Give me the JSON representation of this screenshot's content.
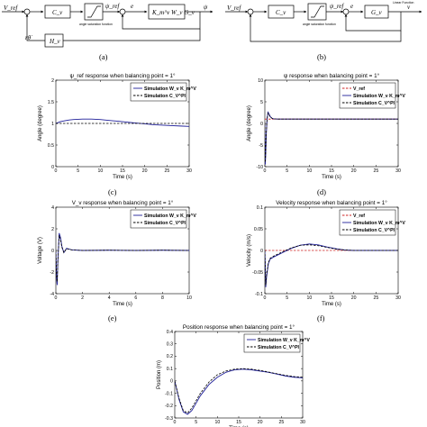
{
  "diagrams": {
    "a": {
      "caption": "(a)",
      "input": "V_ref",
      "controller": "C_v",
      "sat_label": "angle saturation function",
      "psi_ref": "ψ_ref",
      "e": "e",
      "plant": "K_m^v W_v G_v",
      "output": "ψ",
      "feedback_block": "H_v",
      "feedback_signal": "rθ̇"
    },
    "b": {
      "caption": "(b)",
      "input": "V_ref",
      "controller": "C_v",
      "sat_label": "angle saturation function",
      "psi_ref": "ψ_ref",
      "e": "e",
      "plant": "G_v",
      "corner": "Linear Function",
      "output": "v"
    }
  },
  "chart_data": [
    {
      "id": "c",
      "caption": "(c)",
      "type": "line",
      "title": "ψ_ref response when balancing point = 1°",
      "xlabel": "Time (s)",
      "ylabel": "Angle (degree)",
      "xlim": [
        0,
        30
      ],
      "ylim": [
        0,
        2
      ],
      "xticks": [
        "0",
        "5",
        "10",
        "15",
        "20",
        "25",
        "30"
      ],
      "yticks": [
        "0",
        "0.5",
        "1",
        "1.5",
        "2"
      ],
      "legend_position": "top-right",
      "series": [
        {
          "name": "Simulation W_v K_m^V",
          "color": "#1f1f99",
          "dash": "solid",
          "x": [
            0,
            0.5,
            1,
            2,
            3,
            4,
            6,
            8,
            10,
            12,
            14,
            16,
            18,
            20,
            22,
            24,
            26,
            28,
            30
          ],
          "y": [
            1.0,
            1.02,
            1.04,
            1.06,
            1.08,
            1.09,
            1.1,
            1.1,
            1.09,
            1.07,
            1.05,
            1.03,
            1.01,
            0.99,
            0.97,
            0.96,
            0.95,
            0.94,
            0.93
          ]
        },
        {
          "name": "Simulation C_V^PI",
          "color": "#000000",
          "dash": "dashed",
          "x": [
            0,
            30
          ],
          "y": [
            1.0,
            1.0
          ]
        }
      ]
    },
    {
      "id": "d",
      "caption": "(d)",
      "type": "line",
      "title": "ψ response when balancing point = 1°",
      "xlabel": "Time (s)",
      "ylabel": "Angle (degree)",
      "xlim": [
        0,
        30
      ],
      "ylim": [
        -10,
        10
      ],
      "xticks": [
        "0",
        "5",
        "10",
        "15",
        "20",
        "25",
        "30"
      ],
      "yticks": [
        "-10",
        "-5",
        "0",
        "5",
        "10"
      ],
      "legend_position": "top-right",
      "series": [
        {
          "name": "V_ref",
          "color": "#cc2222",
          "dash": "dashed",
          "x": [
            0,
            30
          ],
          "y": [
            1,
            1
          ]
        },
        {
          "name": "Simulation W_v K_m^V",
          "color": "#1f1f99",
          "dash": "solid",
          "x": [
            0,
            0.1,
            0.2,
            0.3,
            0.5,
            0.7,
            0.9,
            1.2,
            1.6,
            2,
            3,
            5,
            10,
            20,
            30
          ],
          "y": [
            0,
            -9.5,
            -7,
            -3,
            1,
            2.6,
            2.3,
            1.6,
            1.2,
            1.05,
            1.0,
            1.0,
            1.0,
            1.0,
            1.0
          ]
        },
        {
          "name": "Simulation C_V^PI",
          "color": "#000000",
          "dash": "dashed",
          "x": [
            0,
            0.1,
            0.2,
            0.3,
            0.5,
            0.7,
            0.9,
            1.2,
            1.6,
            2,
            3,
            5,
            10,
            20,
            30
          ],
          "y": [
            0,
            -9,
            -6.5,
            -2.5,
            1,
            2.4,
            2.1,
            1.5,
            1.2,
            1.05,
            1.0,
            1.0,
            1.0,
            1.0,
            1.0
          ]
        }
      ]
    },
    {
      "id": "e",
      "caption": "(e)",
      "type": "line",
      "title": "V_v response when balancing point = 1°",
      "xlabel": "Time (s)",
      "ylabel": "Voltage (V)",
      "xlim": [
        0,
        10
      ],
      "ylim": [
        -4,
        4
      ],
      "xticks": [
        "0",
        "2",
        "4",
        "6",
        "8",
        "10"
      ],
      "yticks": [
        "-4",
        "-2",
        "0",
        "2",
        "4"
      ],
      "legend_position": "top-right",
      "series": [
        {
          "name": "Simulation W_v K_m^V",
          "color": "#1f1f99",
          "dash": "solid",
          "x": [
            0,
            0.05,
            0.1,
            0.15,
            0.25,
            0.35,
            0.45,
            0.6,
            0.8,
            1.2,
            2,
            4,
            6,
            8,
            10
          ],
          "y": [
            0,
            -2.5,
            -3.2,
            -1,
            1.6,
            1.2,
            0.4,
            -0.2,
            0.2,
            0.05,
            0,
            0.02,
            0,
            0.02,
            0
          ]
        },
        {
          "name": "Simulation C_V^PI",
          "color": "#000000",
          "dash": "dashed",
          "x": [
            0,
            0.05,
            0.1,
            0.15,
            0.25,
            0.35,
            0.45,
            0.6,
            0.8,
            1.2,
            2,
            4,
            6,
            8,
            10
          ],
          "y": [
            0,
            -2.2,
            -2.9,
            -0.9,
            1.4,
            1.0,
            0.3,
            -0.2,
            0.15,
            0.05,
            0,
            0.02,
            0,
            0.02,
            0
          ]
        }
      ]
    },
    {
      "id": "f",
      "caption": "(f)",
      "type": "line",
      "title": "Velocity response when balancing point = 1°",
      "xlabel": "Time (s)",
      "ylabel": "Velocity (m/s)",
      "xlim": [
        0,
        30
      ],
      "ylim": [
        -0.1,
        0.1
      ],
      "xticks": [
        "0",
        "5",
        "10",
        "15",
        "20",
        "25",
        "30"
      ],
      "yticks": [
        "-0.1",
        "-0.05",
        "0",
        "0.05",
        "0.1"
      ],
      "legend_position": "top-right",
      "series": [
        {
          "name": "V_ref",
          "color": "#cc2222",
          "dash": "dashed",
          "x": [
            0,
            30
          ],
          "y": [
            0,
            0
          ]
        },
        {
          "name": "Simulation W_v K_m^V",
          "color": "#1f1f99",
          "dash": "solid",
          "x": [
            0,
            0.2,
            0.4,
            0.8,
            1.2,
            2,
            3,
            4,
            6,
            8,
            10,
            12,
            14,
            16,
            18,
            20,
            22,
            24,
            26,
            28,
            30
          ],
          "y": [
            0,
            -0.085,
            -0.06,
            -0.03,
            -0.02,
            -0.015,
            -0.01,
            -0.005,
            0.005,
            0.012,
            0.015,
            0.013,
            0.008,
            0.004,
            0.001,
            0,
            0,
            0,
            0,
            0,
            0
          ]
        },
        {
          "name": "Simulation C_V^PI",
          "color": "#000000",
          "dash": "dashed",
          "x": [
            0,
            0.2,
            0.4,
            0.8,
            1.2,
            2,
            3,
            4,
            6,
            8,
            10,
            12,
            14,
            16,
            18,
            20,
            22,
            24,
            26,
            28,
            30
          ],
          "y": [
            0,
            -0.08,
            -0.055,
            -0.028,
            -0.018,
            -0.013,
            -0.008,
            -0.003,
            0.006,
            0.012,
            0.013,
            0.011,
            0.007,
            0.003,
            0.001,
            0,
            0,
            0,
            0,
            0,
            0
          ]
        }
      ]
    },
    {
      "id": "g",
      "caption": "",
      "type": "line",
      "title": "Position response when balancing point = 1°",
      "xlabel": "Time (s)",
      "ylabel": "Position (m)",
      "xlim": [
        0,
        30
      ],
      "ylim": [
        -0.3,
        0.4
      ],
      "xticks": [
        "0",
        "5",
        "10",
        "15",
        "20",
        "25",
        "30"
      ],
      "yticks": [
        "-0.3",
        "-0.2",
        "-0.1",
        "0",
        "0.1",
        "0.2",
        "0.3",
        "0.4"
      ],
      "legend_position": "top-right",
      "series": [
        {
          "name": "Simulation W_v K_m^V",
          "color": "#1f1f99",
          "dash": "solid",
          "x": [
            0,
            1,
            2,
            3,
            4,
            5,
            6,
            8,
            10,
            12,
            14,
            16,
            18,
            20,
            22,
            24,
            26,
            28,
            30
          ],
          "y": [
            0,
            -0.15,
            -0.25,
            -0.27,
            -0.24,
            -0.18,
            -0.12,
            -0.03,
            0.03,
            0.07,
            0.09,
            0.095,
            0.09,
            0.08,
            0.07,
            0.055,
            0.04,
            0.03,
            0.025
          ]
        },
        {
          "name": "Simulation C_V^PI",
          "color": "#000000",
          "dash": "dashed",
          "x": [
            0,
            1,
            2,
            3,
            4,
            5,
            6,
            8,
            10,
            12,
            14,
            16,
            18,
            20,
            22,
            24,
            26,
            28,
            30
          ],
          "y": [
            0,
            -0.14,
            -0.24,
            -0.26,
            -0.22,
            -0.16,
            -0.1,
            -0.01,
            0.05,
            0.08,
            0.095,
            0.1,
            0.095,
            0.085,
            0.072,
            0.058,
            0.045,
            0.035,
            0.03
          ]
        }
      ]
    }
  ]
}
